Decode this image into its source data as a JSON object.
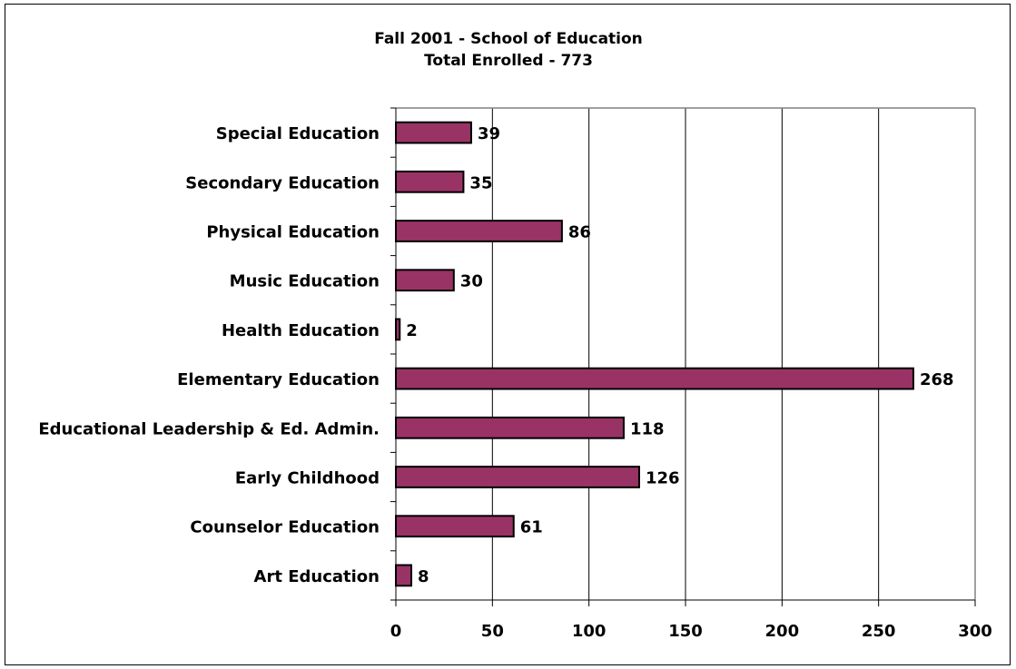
{
  "chart_data": {
    "type": "bar",
    "orientation": "horizontal",
    "title": "Fall 2001 - School of Education",
    "subtitle": "Total Enrolled - 773",
    "categories": [
      "Special Education",
      "Secondary Education",
      "Physical Education",
      "Music Education",
      "Health Education",
      "Elementary Education",
      "Educational Leadership & Ed. Admin.",
      "Early Childhood",
      "Counselor Education",
      "Art Education"
    ],
    "values": [
      39,
      35,
      86,
      30,
      2,
      268,
      118,
      126,
      61,
      8
    ],
    "xlim": [
      0,
      300
    ],
    "xticks": [
      0,
      50,
      100,
      150,
      200,
      250,
      300
    ],
    "xlabel": "",
    "ylabel": "",
    "grid": "vertical",
    "legend": "none",
    "bar_color": "#993366"
  }
}
